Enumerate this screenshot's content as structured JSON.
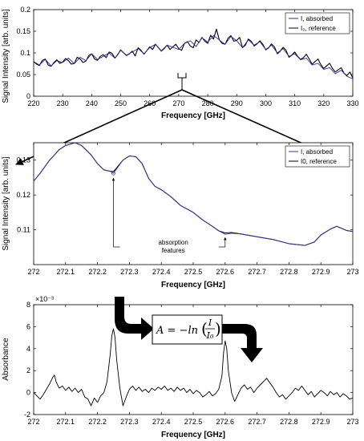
{
  "chart_data": [
    {
      "type": "line",
      "title": "",
      "xlabel": "Frequency [GHz]",
      "ylabel": "Signal Intensity [arb. units]",
      "xlim": [
        220,
        330
      ],
      "ylim": [
        0,
        0.2
      ],
      "xticks": [
        220,
        230,
        240,
        250,
        260,
        270,
        280,
        290,
        300,
        310,
        320,
        330
      ],
      "yticks": [
        0,
        0.05,
        0.1,
        0.15,
        0.2
      ],
      "legend_position": "top-right",
      "legend": [
        "I, absorbed",
        "I₀, reference"
      ],
      "series": [
        {
          "name": "I, absorbed",
          "color": "#2a2a9a",
          "x": [
            220,
            222,
            224,
            226,
            228,
            230,
            232,
            234,
            236,
            238,
            240,
            242,
            244,
            246,
            248,
            250,
            252,
            254,
            256,
            258,
            260,
            262,
            264,
            266,
            268,
            270,
            272,
            274,
            276,
            278,
            280,
            282,
            284,
            286,
            288,
            290,
            292,
            294,
            296,
            298,
            300,
            302,
            304,
            306,
            308,
            310,
            312,
            314,
            316,
            318,
            320,
            322,
            324,
            326,
            328,
            330
          ],
          "y": [
            0.08,
            0.072,
            0.085,
            0.07,
            0.082,
            0.078,
            0.088,
            0.075,
            0.09,
            0.082,
            0.098,
            0.085,
            0.092,
            0.1,
            0.088,
            0.106,
            0.095,
            0.102,
            0.11,
            0.098,
            0.112,
            0.12,
            0.105,
            0.118,
            0.113,
            0.108,
            0.122,
            0.128,
            0.115,
            0.135,
            0.125,
            0.14,
            0.13,
            0.12,
            0.138,
            0.128,
            0.112,
            0.13,
            0.118,
            0.126,
            0.108,
            0.118,
            0.1,
            0.11,
            0.092,
            0.098,
            0.084,
            0.088,
            0.072,
            0.076,
            0.062,
            0.066,
            0.052,
            0.06,
            0.046,
            0.04
          ]
        },
        {
          "name": "I₀, reference",
          "color": "#000000",
          "x": [
            220,
            221,
            222,
            223,
            224,
            225,
            226,
            227,
            228,
            229,
            230,
            231,
            232,
            233,
            234,
            235,
            236,
            237,
            238,
            239,
            240,
            241,
            242,
            243,
            244,
            245,
            246,
            247,
            248,
            249,
            250,
            251,
            252,
            253,
            254,
            255,
            256,
            257,
            258,
            259,
            260,
            261,
            262,
            263,
            264,
            265,
            266,
            267,
            268,
            269,
            270,
            271,
            272,
            273,
            274,
            275,
            276,
            277,
            278,
            279,
            280,
            281,
            282,
            283,
            284,
            285,
            286,
            287,
            288,
            289,
            290,
            291,
            292,
            293,
            294,
            295,
            296,
            297,
            298,
            299,
            300,
            301,
            302,
            303,
            304,
            305,
            306,
            307,
            308,
            309,
            310,
            311,
            312,
            313,
            314,
            315,
            316,
            317,
            318,
            319,
            320,
            321,
            322,
            323,
            324,
            325,
            326,
            327,
            328,
            329,
            330
          ],
          "y": [
            0.08,
            0.074,
            0.071,
            0.083,
            0.086,
            0.072,
            0.069,
            0.078,
            0.084,
            0.076,
            0.079,
            0.087,
            0.082,
            0.074,
            0.076,
            0.09,
            0.086,
            0.078,
            0.081,
            0.094,
            0.098,
            0.086,
            0.083,
            0.092,
            0.096,
            0.089,
            0.102,
            0.099,
            0.088,
            0.096,
            0.107,
            0.1,
            0.094,
            0.098,
            0.104,
            0.093,
            0.112,
            0.106,
            0.097,
            0.105,
            0.114,
            0.108,
            0.12,
            0.112,
            0.104,
            0.11,
            0.118,
            0.108,
            0.114,
            0.12,
            0.11,
            0.106,
            0.122,
            0.126,
            0.116,
            0.112,
            0.13,
            0.124,
            0.136,
            0.127,
            0.122,
            0.141,
            0.132,
            0.155,
            0.13,
            0.122,
            0.12,
            0.134,
            0.14,
            0.127,
            0.129,
            0.136,
            0.112,
            0.118,
            0.132,
            0.127,
            0.116,
            0.121,
            0.128,
            0.12,
            0.107,
            0.112,
            0.121,
            0.114,
            0.098,
            0.104,
            0.113,
            0.106,
            0.09,
            0.095,
            0.102,
            0.092,
            0.085,
            0.089,
            0.097,
            0.086,
            0.074,
            0.08,
            0.086,
            0.073,
            0.064,
            0.07,
            0.076,
            0.064,
            0.056,
            0.061,
            0.066,
            0.053,
            0.048,
            0.056,
            0.042
          ]
        }
      ]
    },
    {
      "type": "line",
      "title": "",
      "xlabel": "Frequency [GHz]",
      "ylabel": "Signal Intensity [arb. units]",
      "xlim": [
        272,
        273
      ],
      "ylim": [
        0.1,
        0.135
      ],
      "xticks": [
        272,
        272.1,
        272.2,
        272.3,
        272.4,
        272.5,
        272.6,
        272.7,
        272.8,
        272.9,
        273
      ],
      "yticks": [
        0.11,
        0.12,
        0.13
      ],
      "legend_position": "top-right",
      "legend": [
        "I, absorbed",
        "I0, reference"
      ],
      "annotation": "absorption features",
      "annotation_lines": [
        "absorption",
        "features"
      ],
      "annotation_points": [
        [
          272.25,
          0.1262
        ],
        [
          272.6,
          0.1087
        ]
      ],
      "series": [
        {
          "name": "I, absorbed",
          "color": "#3a3aa0",
          "x": [
            272,
            272.02,
            272.05,
            272.08,
            272.1,
            272.13,
            272.15,
            272.18,
            272.2,
            272.22,
            272.24,
            272.25,
            272.26,
            272.28,
            272.3,
            272.32,
            272.34,
            272.36,
            272.38,
            272.4,
            272.43,
            272.46,
            272.5,
            272.53,
            272.56,
            272.58,
            272.6,
            272.62,
            272.65,
            272.7,
            272.75,
            272.8,
            272.85,
            272.88,
            272.9,
            272.93,
            272.95,
            272.98,
            273
          ],
          "y": [
            0.124,
            0.1262,
            0.13,
            0.133,
            0.1342,
            0.135,
            0.1342,
            0.1315,
            0.129,
            0.1272,
            0.1268,
            0.1262,
            0.1275,
            0.13,
            0.1312,
            0.131,
            0.129,
            0.1248,
            0.1225,
            0.1215,
            0.1195,
            0.117,
            0.115,
            0.1128,
            0.111,
            0.1097,
            0.1087,
            0.109,
            0.1088,
            0.108,
            0.1072,
            0.106,
            0.1055,
            0.1065,
            0.1085,
            0.1102,
            0.111,
            0.1098,
            0.1095
          ]
        },
        {
          "name": "I0, reference",
          "color": "#000000",
          "x": [
            272,
            272.02,
            272.05,
            272.08,
            272.1,
            272.13,
            272.15,
            272.18,
            272.2,
            272.22,
            272.24,
            272.25,
            272.26,
            272.28,
            272.3,
            272.32,
            272.34,
            272.36,
            272.38,
            272.4,
            272.43,
            272.46,
            272.5,
            272.53,
            272.56,
            272.58,
            272.6,
            272.62,
            272.65,
            272.7,
            272.75,
            272.8,
            272.85,
            272.88,
            272.9,
            272.93,
            272.95,
            272.98,
            273
          ],
          "y": [
            0.124,
            0.1262,
            0.13,
            0.133,
            0.1342,
            0.135,
            0.1342,
            0.1315,
            0.129,
            0.1272,
            0.1268,
            0.1267,
            0.1278,
            0.13,
            0.1312,
            0.131,
            0.129,
            0.1248,
            0.1225,
            0.1215,
            0.1195,
            0.117,
            0.115,
            0.1128,
            0.111,
            0.1097,
            0.1091,
            0.1092,
            0.1088,
            0.108,
            0.1072,
            0.106,
            0.1055,
            0.1065,
            0.1085,
            0.1102,
            0.111,
            0.1098,
            0.1095
          ]
        }
      ]
    },
    {
      "type": "line",
      "title": "",
      "xlabel": "Frequency [GHz]",
      "ylabel": "Absorbance",
      "xlim": [
        272,
        273
      ],
      "ylim": [
        -0.002,
        0.008
      ],
      "xticks": [
        272,
        272.1,
        272.2,
        272.3,
        272.4,
        272.5,
        272.6,
        272.7,
        272.8,
        272.9,
        273
      ],
      "yticks": [
        -0.002,
        0,
        0.002,
        0.004,
        0.006,
        0.008
      ],
      "yticklabels": [
        "-2",
        "0",
        "2",
        "4",
        "6",
        "8"
      ],
      "y_exponent": "×10⁻³",
      "equation": "A = −ln(I / I₀)",
      "equation_parts": {
        "lhs": "A = −ln",
        "num": "I",
        "den": "I₀"
      },
      "series": [
        {
          "name": "",
          "color": "#000000",
          "x": [
            272,
            272.01,
            272.02,
            272.03,
            272.04,
            272.05,
            272.06,
            272.065,
            272.07,
            272.08,
            272.09,
            272.1,
            272.11,
            272.12,
            272.13,
            272.14,
            272.15,
            272.16,
            272.17,
            272.18,
            272.19,
            272.2,
            272.21,
            272.22,
            272.23,
            272.24,
            272.245,
            272.25,
            272.255,
            272.26,
            272.27,
            272.28,
            272.29,
            272.3,
            272.31,
            272.32,
            272.33,
            272.34,
            272.35,
            272.36,
            272.37,
            272.38,
            272.39,
            272.4,
            272.41,
            272.42,
            272.43,
            272.44,
            272.45,
            272.46,
            272.47,
            272.48,
            272.49,
            272.5,
            272.51,
            272.52,
            272.53,
            272.54,
            272.55,
            272.56,
            272.57,
            272.58,
            272.59,
            272.595,
            272.6,
            272.605,
            272.61,
            272.62,
            272.63,
            272.64,
            272.65,
            272.66,
            272.67,
            272.68,
            272.69,
            272.7,
            272.71,
            272.72,
            272.73,
            272.74,
            272.75,
            272.76,
            272.77,
            272.78,
            272.79,
            272.8,
            272.81,
            272.82,
            272.83,
            272.84,
            272.85,
            272.86,
            272.87,
            272.88,
            272.89,
            272.9,
            272.91,
            272.92,
            272.93,
            272.94,
            272.95,
            272.96,
            272.97,
            272.98,
            272.99,
            273
          ],
          "y": [
            0.0,
            -0.0003,
            -0.0006,
            -0.0002,
            0.0003,
            0.0008,
            0.0014,
            0.0016,
            0.001,
            0.0004,
            0.0006,
            0.0002,
            0.0005,
            0.0001,
            0.0004,
            0.0,
            0.0003,
            -0.0004,
            -0.0006,
            -0.0012,
            -0.0005,
            -0.0009,
            -0.0003,
            0.0,
            0.001,
            0.0035,
            0.0052,
            0.0058,
            0.005,
            0.003,
            0.0004,
            -0.0012,
            -0.0004,
            0.0003,
            0.0006,
            0.0002,
            0.0005,
            0.0001,
            0.0003,
            0.0,
            0.0004,
            0.0002,
            0.0005,
            0.0003,
            0.0006,
            0.0002,
            0.0004,
            0.0001,
            0.0005,
            0.0002,
            0.0004,
            0.0,
            0.0003,
            -0.0001,
            0.0002,
            0.0,
            -0.0004,
            -0.0002,
            0.0001,
            -0.0003,
            -0.0001,
            0.0003,
            0.0015,
            0.0036,
            0.0047,
            0.004,
            0.002,
            0.0,
            -0.0008,
            -0.0002,
            0.0004,
            0.0007,
            0.0003,
            0.0005,
            0.0,
            0.0004,
            0.0007,
            0.001,
            0.0013,
            0.0009,
            0.0005,
            0.0,
            -0.0004,
            -0.0002,
            -0.0006,
            -0.0003,
            0.0,
            0.0004,
            0.0002,
            0.0006,
            0.0002,
            -0.0002,
            0.0001,
            -0.0004,
            -0.0001,
            0.0002,
            0.0,
            -0.0003,
            0.0001,
            -0.0002,
            0.0,
            -0.0004,
            -0.0001,
            -0.0003,
            -0.0006,
            -0.0005
          ]
        }
      ]
    }
  ]
}
